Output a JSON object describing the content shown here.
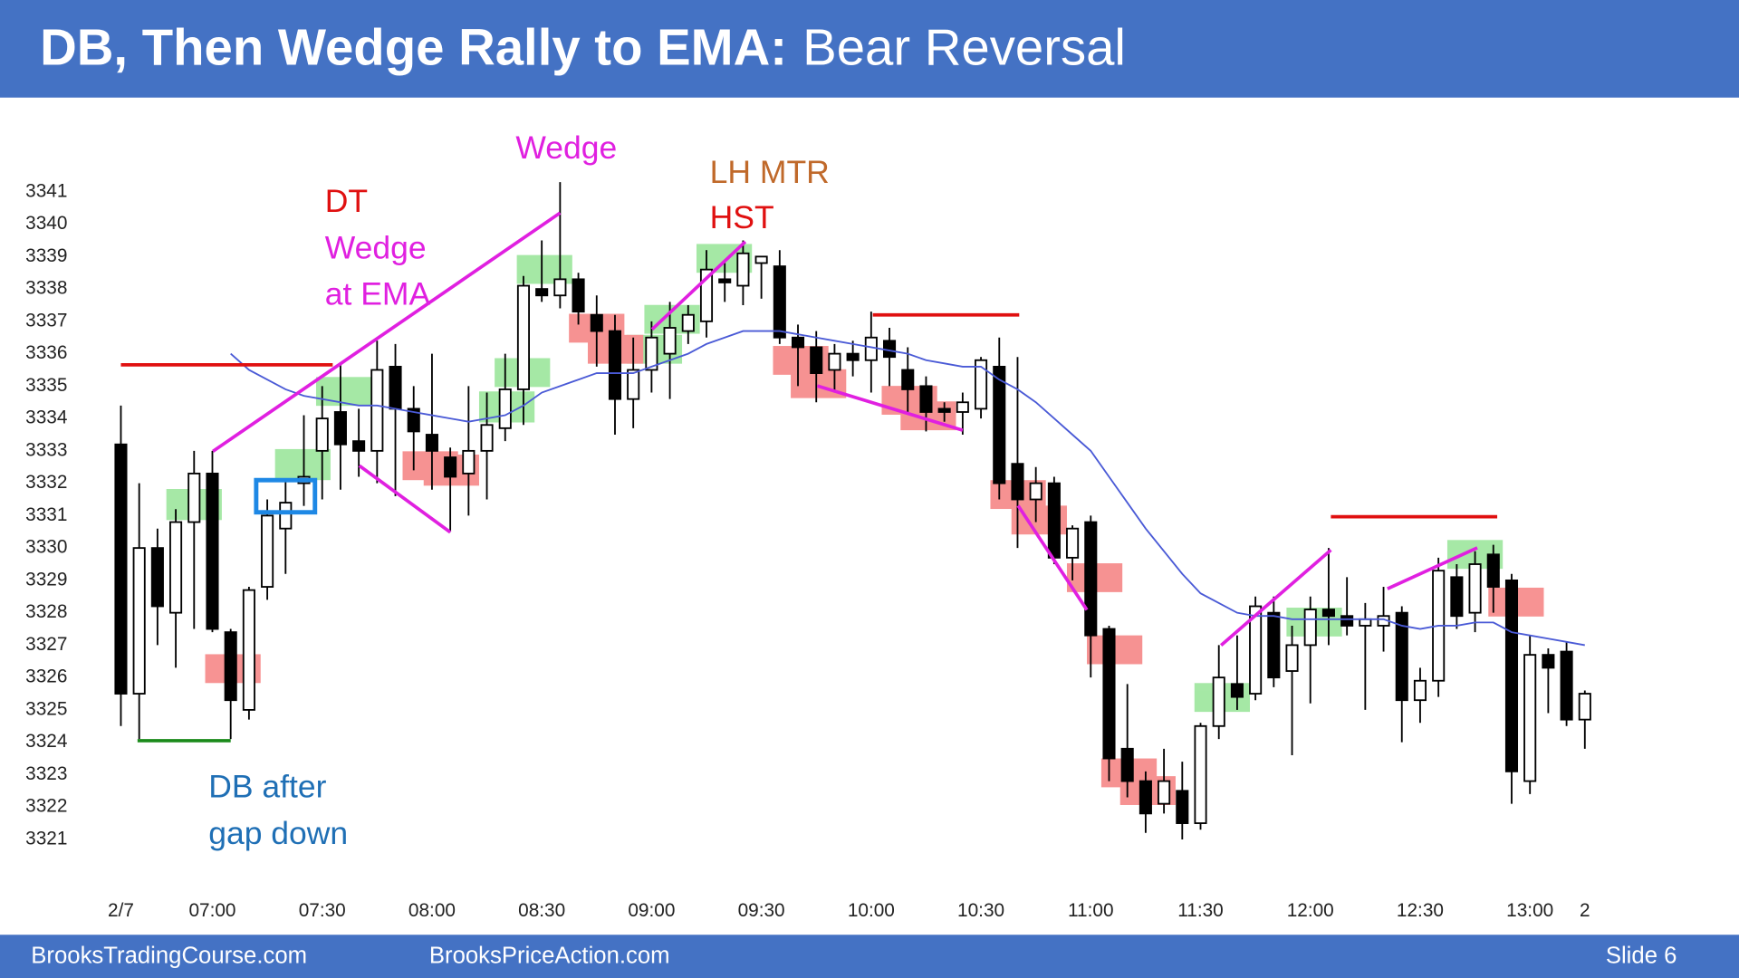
{
  "header": {
    "title_bold": "DB, Then Wedge Rally to EMA:",
    "title_rest": "Bear Reversal"
  },
  "chart_data": {
    "type": "candlestick",
    "categories": [
      "2/7",
      null,
      null,
      null,
      null,
      "07:00",
      null,
      null,
      null,
      null,
      null,
      "07:30",
      null,
      null,
      null,
      null,
      null,
      "08:00",
      null,
      null,
      null,
      null,
      null,
      "08:30",
      null,
      null,
      null,
      null,
      null,
      "09:00",
      null,
      null,
      null,
      null,
      null,
      "09:30",
      null,
      null,
      null,
      null,
      null,
      "10:00",
      null,
      null,
      null,
      null,
      null,
      "10:30",
      null,
      null,
      null,
      null,
      null,
      "11:00",
      null,
      null,
      null,
      null,
      null,
      "11:30",
      null,
      null,
      null,
      null,
      null,
      "12:00",
      null,
      null,
      null,
      null,
      null,
      "12:30",
      null,
      null,
      null,
      null,
      null,
      "13:00",
      null,
      null,
      "2"
    ],
    "open": [
      3333.2,
      3325.5,
      3330,
      3328,
      3330.8,
      3332.3,
      3327.4,
      3325,
      3328.8,
      3330.6,
      3332,
      3333,
      3334.2,
      3333.3,
      3333,
      3335.6,
      3334.3,
      3333.5,
      3332.8,
      3332.3,
      3333,
      3333.7,
      3334.9,
      3338,
      3337.8,
      3338.3,
      3337.2,
      3336.7,
      3334.6,
      3335.5,
      3336,
      3336.7,
      3337,
      3338.3,
      3338.1,
      3338.8,
      3338.7,
      3336.5,
      3336.2,
      3335.5,
      3336,
      3335.8,
      3336.4,
      3335.5,
      3335,
      3334.3,
      3334.2,
      3334.3,
      3335.6,
      3332.6,
      3331.5,
      3332,
      3329.7,
      3330.8,
      3327.5,
      3323.8,
      3322.8,
      3322.1,
      3322.5,
      3321.5,
      3324.5,
      3325.8,
      3325.5,
      3328,
      3326.2,
      3327,
      3328.1,
      3327.9,
      3327.6,
      3327.6,
      3328,
      3325.3,
      3325.9,
      3329.1,
      3328,
      3329.8,
      3329,
      3322.8,
      3326.7,
      3326.8,
      3324.7
    ],
    "high": [
      3334.4,
      3332,
      3330.6,
      3331.2,
      3333,
      3333,
      3327.5,
      3328.8,
      3331.5,
      3332.1,
      3334.1,
      3335,
      3335.7,
      3334.3,
      3336.4,
      3336.3,
      3335,
      3336,
      3333.1,
      3335,
      3334.8,
      3336,
      3338.4,
      3339.5,
      3341.3,
      3338.5,
      3337.8,
      3337.2,
      3336.5,
      3337,
      3337.6,
      3337.5,
      3339.2,
      3338.8,
      3339.5,
      3339,
      3339.2,
      3336.9,
      3336.7,
      3336.3,
      3336.4,
      3337.3,
      3336.8,
      3336.2,
      3335.3,
      3334.5,
      3334.8,
      3335.9,
      3336.5,
      3335.9,
      3332.5,
      3332.2,
      3330.7,
      3331,
      3327.6,
      3325.8,
      3323.1,
      3323.8,
      3323.4,
      3324.6,
      3327,
      3327.3,
      3328.5,
      3328.5,
      3327.6,
      3328.5,
      3330,
      3329.1,
      3328.3,
      3328.8,
      3328.2,
      3326.3,
      3329.7,
      3329.5,
      3329.9,
      3330.1,
      3329.2,
      3327.3,
      3326.9,
      3327.1,
      3325.6
    ],
    "low": [
      3324.5,
      3324.1,
      3327,
      3326.3,
      3327.5,
      3327.4,
      3324.1,
      3324.7,
      3328.4,
      3329.2,
      3331.3,
      3331.5,
      3331.8,
      3332.2,
      3332,
      3331.6,
      3332.4,
      3331.8,
      3330.5,
      3331,
      3331.5,
      3333.3,
      3333.8,
      3337.6,
      3337.4,
      3336.9,
      3335.6,
      3333.5,
      3333.7,
      3334.8,
      3334.6,
      3336.3,
      3336.5,
      3337.6,
      3337.5,
      3337.7,
      3336.3,
      3335,
      3334.5,
      3334.8,
      3335.3,
      3334.8,
      3335,
      3334.2,
      3333.6,
      3333.9,
      3333.5,
      3334,
      3331.5,
      3330,
      3330.8,
      3329.5,
      3329,
      3326,
      3322.8,
      3322.3,
      3321.2,
      3321.8,
      3321,
      3321.3,
      3324.1,
      3325,
      3325.3,
      3325.7,
      3323.6,
      3325.2,
      3327,
      3327.3,
      3325,
      3326.8,
      3324,
      3324.6,
      3325.4,
      3327.5,
      3327.4,
      3328,
      3322.1,
      3322.4,
      3324.9,
      3324.5,
      3323.8
    ],
    "close": [
      3325.5,
      3330,
      3328.2,
      3330.8,
      3332.3,
      3327.5,
      3325.3,
      3328.7,
      3331,
      3331.4,
      3332.2,
      3334,
      3333.2,
      3333,
      3335.5,
      3334.3,
      3333.6,
      3333,
      3332.2,
      3333,
      3333.8,
      3334.9,
      3338.1,
      3337.8,
      3338.3,
      3337.3,
      3336.7,
      3334.6,
      3335.5,
      3336.5,
      3336.8,
      3337.2,
      3338.6,
      3338.2,
      3339.1,
      3339,
      3336.5,
      3336.2,
      3335.4,
      3336,
      3335.8,
      3336.5,
      3335.9,
      3334.9,
      3334.2,
      3334.2,
      3334.5,
      3335.8,
      3332,
      3331.5,
      3332,
      3329.7,
      3330.6,
      3327.3,
      3323.5,
      3322.8,
      3321.8,
      3322.8,
      3321.5,
      3324.5,
      3326,
      3325.4,
      3328.2,
      3326,
      3327,
      3328.1,
      3327.9,
      3327.6,
      3327.8,
      3327.9,
      3325.3,
      3325.9,
      3329.3,
      3327.9,
      3329.5,
      3328.8,
      3323.1,
      3326.7,
      3326.3,
      3324.7,
      3325.5
    ],
    "up_color": "#ffffff",
    "down_color": "#000000",
    "ema": {
      "color": "#4a5ad6",
      "values": [
        null,
        null,
        null,
        null,
        null,
        null,
        3336.0,
        3335.5,
        3335.2,
        3334.9,
        3334.7,
        3334.6,
        3334.5,
        3334.4,
        3334.4,
        3334.3,
        3334.2,
        3334.1,
        3334.0,
        3333.9,
        3334.0,
        3334.1,
        3334.4,
        3334.8,
        3335.0,
        3335.2,
        3335.4,
        3335.4,
        3335.4,
        3335.6,
        3335.8,
        3336.0,
        3336.3,
        3336.5,
        3336.7,
        3336.7,
        3336.7,
        3336.6,
        3336.5,
        3336.4,
        3336.3,
        3336.2,
        3336.1,
        3336.0,
        3335.8,
        3335.7,
        3335.6,
        3335.6,
        3335.2,
        3334.9,
        3334.5,
        3334.0,
        3333.5,
        3333.0,
        3332.2,
        3331.4,
        3330.6,
        3329.9,
        3329.2,
        3328.6,
        3328.3,
        3328.0,
        3327.9,
        3327.9,
        3327.8,
        3327.8,
        3327.8,
        3327.8,
        3327.8,
        3327.8,
        3327.6,
        3327.5,
        3327.6,
        3327.6,
        3327.7,
        3327.7,
        3327.4,
        3327.3,
        3327.2,
        3327.1,
        3327.0
      ]
    },
    "ylim": [
      3320,
      3342
    ],
    "yticks": [
      3321,
      3322,
      3323,
      3324,
      3325,
      3326,
      3327,
      3328,
      3329,
      3330,
      3331,
      3332,
      3333,
      3334,
      3335,
      3336,
      3337,
      3338,
      3339,
      3340,
      3341
    ],
    "grid": false,
    "annotations": [
      "DT",
      "Wedge",
      "at EMA",
      "Wedge",
      "LH MTR",
      "HST",
      "DB after",
      "gap down"
    ]
  },
  "footer": {
    "left": "BrooksTradingCourse.com",
    "center": "BrooksPriceAction.com",
    "right": "Slide  6"
  }
}
